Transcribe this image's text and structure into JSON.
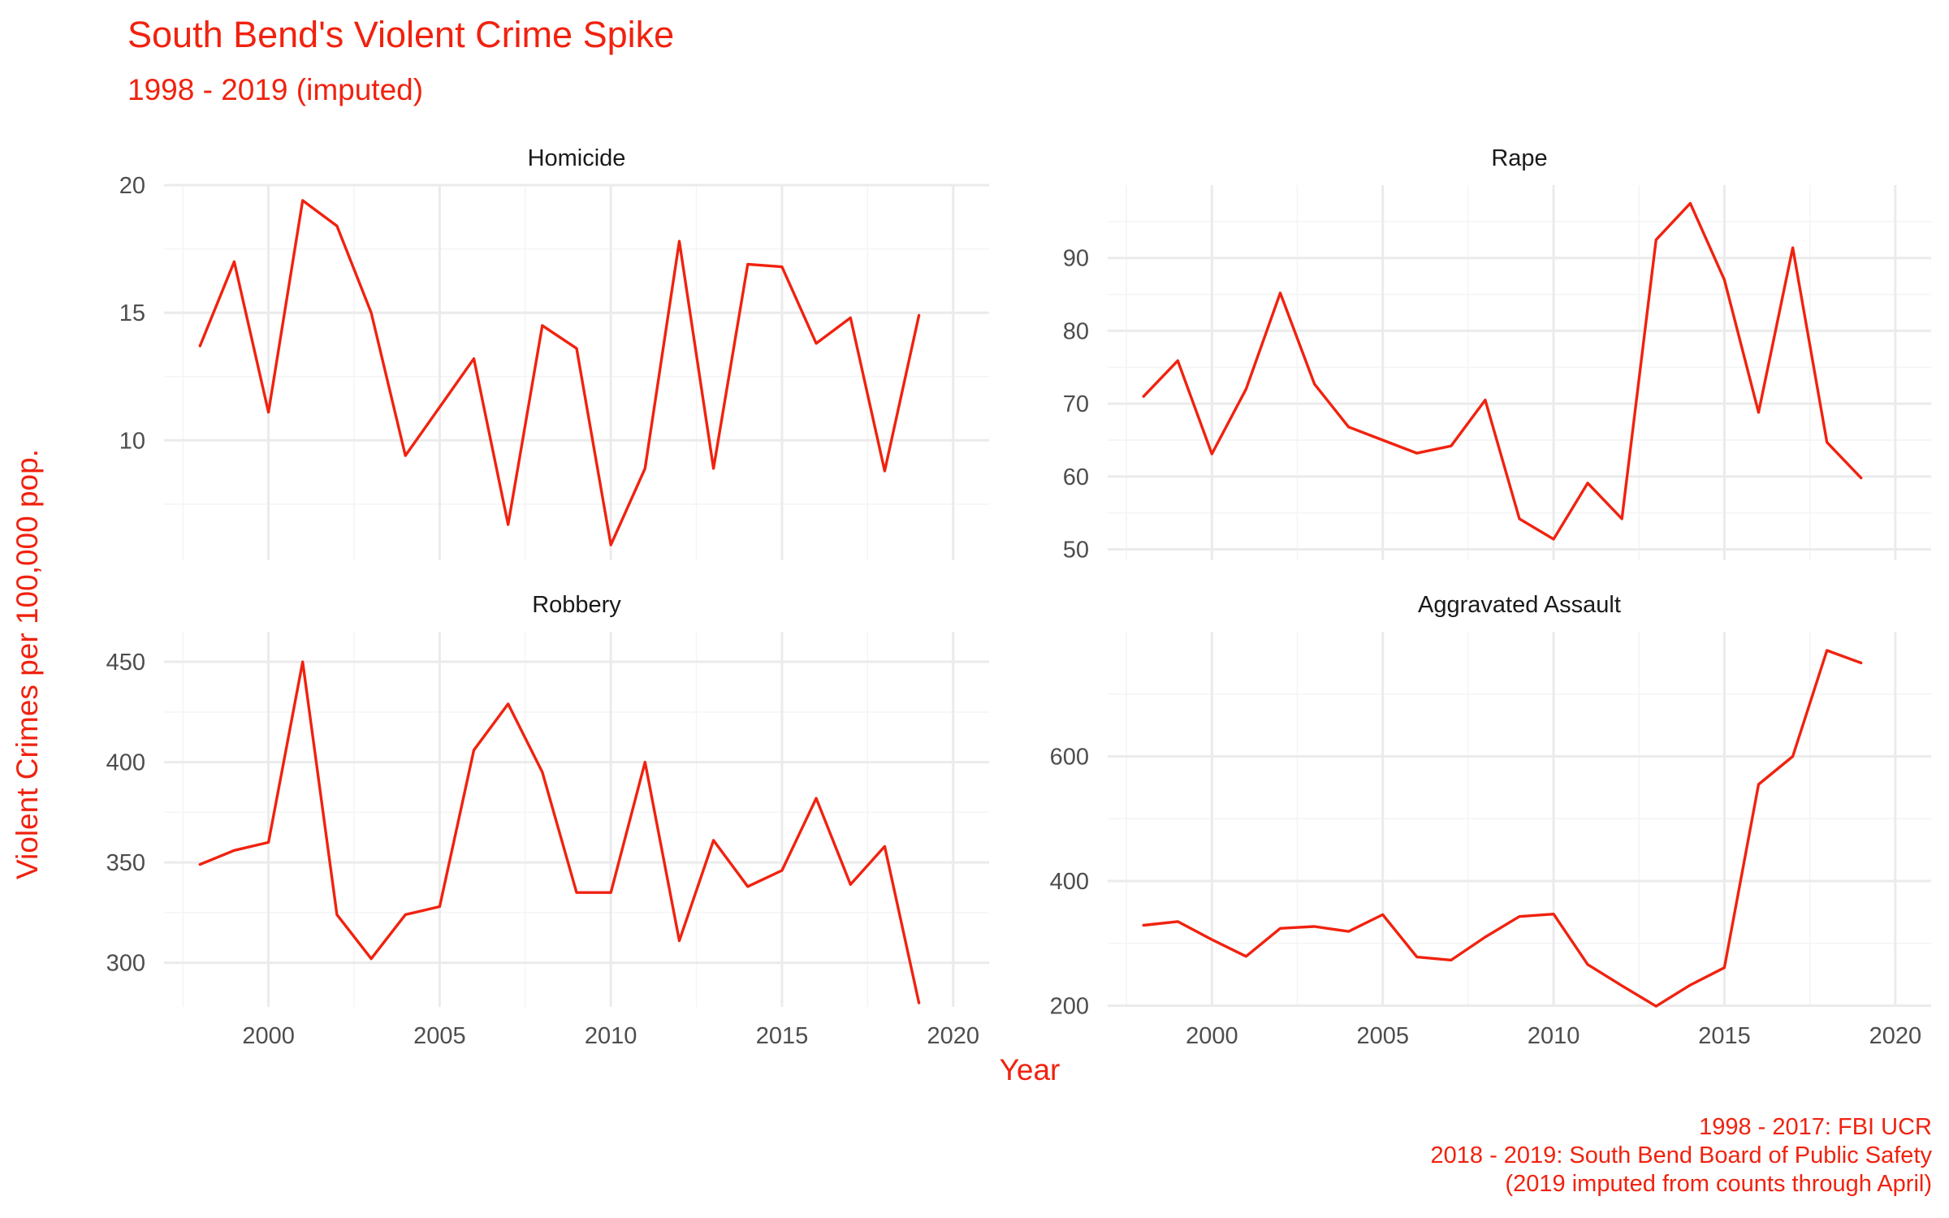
{
  "chart_data": {
    "type": "line",
    "title": "South Bend's Violent Crime Spike",
    "subtitle": "1998 - 2019 (imputed)",
    "xlabel": "Year",
    "ylabel": "Violent Crimes per 100,000 pop.",
    "caption": [
      "1998 - 2017: FBI UCR",
      "2018 - 2019: South Bend Board of Public Safety",
      "(2019 imputed from counts through April)"
    ],
    "line_color": "#f0220f",
    "grid": true,
    "x": [
      1998,
      1999,
      2000,
      2001,
      2002,
      2003,
      2004,
      2005,
      2006,
      2007,
      2008,
      2009,
      2010,
      2011,
      2012,
      2013,
      2014,
      2015,
      2016,
      2017,
      2018,
      2019
    ],
    "xlim": [
      1996.95,
      2021.05
    ],
    "xticks": [
      2000,
      2005,
      2010,
      2015,
      2020
    ],
    "panels": [
      {
        "name": "Homicide",
        "ylim": [
          5.3,
          20
        ],
        "yticks": [
          10,
          15,
          20
        ],
        "values": [
          13.7,
          17.0,
          11.1,
          19.4,
          18.4,
          15.0,
          9.4,
          11.3,
          13.2,
          6.7,
          14.5,
          13.6,
          5.9,
          8.9,
          17.8,
          8.9,
          16.9,
          16.8,
          13.8,
          14.8,
          8.8,
          14.9
        ]
      },
      {
        "name": "Rape",
        "ylim": [
          48.5,
          100
        ],
        "yticks": [
          50,
          60,
          70,
          80,
          90
        ],
        "values": [
          71.0,
          75.9,
          63.1,
          72.0,
          85.2,
          72.7,
          66.8,
          65.0,
          63.2,
          64.2,
          70.5,
          54.2,
          51.4,
          59.1,
          54.2,
          92.5,
          97.5,
          87.0,
          68.8,
          91.4,
          64.7,
          59.8
        ]
      },
      {
        "name": "Robbery",
        "ylim": [
          278,
          465
        ],
        "yticks": [
          300,
          350,
          400,
          450
        ],
        "values": [
          349,
          356,
          360,
          450,
          324,
          302,
          324,
          328,
          406,
          429,
          395,
          335,
          335,
          400,
          311,
          361,
          338,
          346,
          382,
          339,
          358,
          280
        ]
      },
      {
        "name": "Aggravated Assault",
        "ylim": [
          198,
          800
        ],
        "yticks": [
          200,
          400,
          600
        ],
        "values": [
          329,
          335,
          306,
          279,
          324,
          327,
          319,
          346,
          278,
          273,
          310,
          343,
          347,
          266,
          232,
          199,
          233,
          261,
          555,
          600,
          770,
          750
        ]
      }
    ]
  }
}
